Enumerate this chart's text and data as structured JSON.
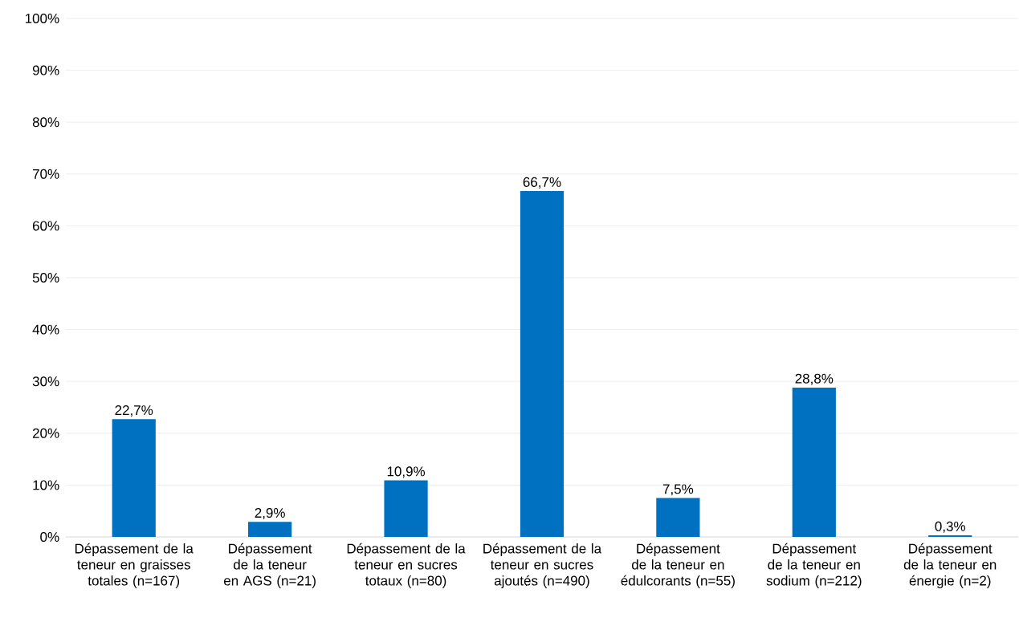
{
  "chart_data": {
    "type": "bar",
    "categories": [
      "Dépassement de la teneur en graisses totales (n=167)",
      "Dépassement de la teneur en AGS (n=21)",
      "Dépassement de la teneur en sucres totaux (n=80)",
      "Dépassement de la teneur en sucres ajoutés (n=490)",
      "Dépassement de la teneur en édulcorants (n=55)",
      "Dépassement de la teneur en sodium (n=212)",
      "Dépassement de la teneur en énergie (n=2)"
    ],
    "values": [
      22.7,
      2.9,
      10.9,
      66.7,
      7.5,
      28.8,
      0.3
    ],
    "value_labels": [
      "22,7%",
      "2,9%",
      "10,9%",
      "66,7%",
      "7,5%",
      "28,8%",
      "0,3%"
    ],
    "color": "#0070c0",
    "ylim": [
      0,
      100
    ],
    "yticks": [
      {
        "value": 0,
        "label": "0%"
      },
      {
        "value": 10,
        "label": "10%"
      },
      {
        "value": 20,
        "label": "20%"
      },
      {
        "value": 30,
        "label": "30%"
      },
      {
        "value": 40,
        "label": "40%"
      },
      {
        "value": 50,
        "label": "50%"
      },
      {
        "value": 60,
        "label": "60%"
      },
      {
        "value": 70,
        "label": "70%"
      },
      {
        "value": 80,
        "label": "80%"
      },
      {
        "value": 90,
        "label": "90%"
      },
      {
        "value": 100,
        "label": "100%"
      }
    ],
    "grid": "y"
  }
}
